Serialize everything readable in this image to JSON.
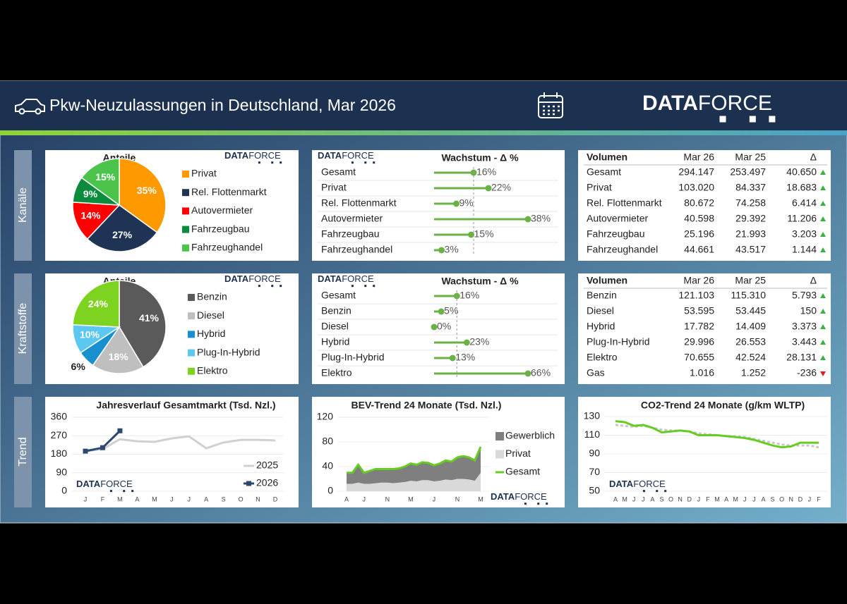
{
  "header": {
    "title": "Pkw-Neuzulassungen in Deutschland, Mar 2026",
    "logo": {
      "bold": "DATA",
      "light": "FORCE"
    }
  },
  "sections": [
    "Kanäle",
    "Kraftstoffe",
    "Trend"
  ],
  "chart_data": [
    {
      "type": "pie",
      "title": "Anteile",
      "categories": [
        "Privat",
        "Rel. Flottenmarkt",
        "Autovermieter",
        "Fahrzeugbau",
        "Fahrzeughandel"
      ],
      "values": [
        35,
        27,
        14,
        9,
        15
      ],
      "value_labels": [
        "35%",
        "27%",
        "14%",
        "9%",
        "15%"
      ],
      "colors": [
        "#ff9900",
        "#1f3354",
        "#ff0000",
        "#0b8c3c",
        "#4cc44c"
      ]
    },
    {
      "type": "bar",
      "orientation": "horizontal",
      "title": "Wachstum - Δ %",
      "categories": [
        "Gesamt",
        "Privat",
        "Rel. Flottenmarkt",
        "Autovermieter",
        "Fahrzeugbau",
        "Fahrzeughandel"
      ],
      "values": [
        16,
        22,
        9,
        38,
        15,
        3
      ],
      "value_labels": [
        "16%",
        "22%",
        "9%",
        "38%",
        "15%",
        "3%"
      ],
      "color": "#6ab245"
    },
    {
      "type": "pie",
      "title": "Anteile",
      "categories": [
        "Benzin",
        "Diesel",
        "Hybrid",
        "Plug-In-Hybrid",
        "Elektro"
      ],
      "values": [
        41,
        18,
        6,
        10,
        24
      ],
      "value_labels": [
        "41%",
        "18%",
        "6%",
        "10%",
        "24%"
      ],
      "colors": [
        "#5a5a5a",
        "#bfbfbf",
        "#1890d0",
        "#5cc8f2",
        "#7ed321"
      ]
    },
    {
      "type": "bar",
      "orientation": "horizontal",
      "title": "Wachstum - Δ %",
      "categories": [
        "Gesamt",
        "Benzin",
        "Diesel",
        "Hybrid",
        "Plug-In-Hybrid",
        "Elektro"
      ],
      "values": [
        16,
        5,
        0,
        23,
        13,
        66
      ],
      "value_labels": [
        "16%",
        "5%",
        "0%",
        "23%",
        "13%",
        "66%"
      ],
      "color": "#6ab245"
    },
    {
      "type": "line",
      "title": "Jahresverlauf Gesamtmarkt (Tsd. Nzl.)",
      "categories": [
        "J",
        "F",
        "M",
        "A",
        "M",
        "J",
        "J",
        "A",
        "S",
        "O",
        "N",
        "D"
      ],
      "series": [
        {
          "name": "2025",
          "color": "#d0d0d0",
          "values": [
            195,
            205,
            253,
            243,
            240,
            257,
            267,
            209,
            237,
            250,
            250,
            247
          ]
        },
        {
          "name": "2026",
          "color": "#2c4770",
          "values": [
            195,
            212,
            294,
            null,
            null,
            null,
            null,
            null,
            null,
            null,
            null,
            null
          ]
        }
      ],
      "ylim": [
        0,
        360
      ],
      "yticks": [
        0,
        90,
        180,
        270,
        360
      ]
    },
    {
      "type": "area",
      "stacked": true,
      "title": "BEV-Trend 24 Monate (Tsd. Nzl.)",
      "categories": [
        "A",
        null,
        null,
        "J",
        null,
        null,
        null,
        "N",
        null,
        null,
        null,
        "M",
        null,
        null,
        null,
        "J",
        null,
        null,
        null,
        "N",
        null,
        null,
        null,
        "M"
      ],
      "series": [
        {
          "name": "Gewerblich",
          "color": "#7f7f7f",
          "values": [
            18,
            18,
            29,
            18,
            21,
            23,
            22,
            22,
            23,
            23,
            25,
            28,
            27,
            29,
            28,
            26,
            28,
            31,
            30,
            35,
            37,
            36,
            33,
            42
          ]
        },
        {
          "name": "Privat",
          "color": "#d9d9d9",
          "values": [
            12,
            12,
            14,
            12,
            12,
            13,
            14,
            14,
            13,
            14,
            15,
            17,
            16,
            18,
            18,
            16,
            17,
            19,
            18,
            20,
            20,
            19,
            17,
            30
          ]
        },
        {
          "name": "Gesamt",
          "color": "#66cc22",
          "type": "line",
          "values": [
            30,
            30,
            43,
            30,
            33,
            36,
            36,
            36,
            36,
            37,
            40,
            45,
            43,
            47,
            46,
            42,
            45,
            50,
            48,
            55,
            57,
            55,
            50,
            72
          ]
        }
      ],
      "ylim": [
        0,
        120
      ],
      "yticks": [
        0,
        40,
        80,
        120
      ]
    },
    {
      "type": "line",
      "title": "CO2-Trend 24 Monate (g/km WLTP)",
      "categories": [
        "A",
        "M",
        "J",
        "J",
        "A",
        "S",
        "O",
        "N",
        "D",
        "J",
        "F",
        "M",
        "A",
        "M",
        "J",
        "J",
        "A",
        "S",
        "O",
        "N",
        "D",
        "J",
        "F"
      ],
      "series": [
        {
          "color": "#c8c8c8",
          "dashed": true,
          "values": [
            121,
            120,
            119,
            120,
            118,
            116,
            115,
            115,
            114,
            112,
            111,
            110,
            109,
            109,
            108,
            106,
            104,
            102,
            100,
            99,
            99,
            99,
            97
          ]
        },
        {
          "color": "#66cc22",
          "values": [
            125,
            124,
            120,
            121,
            118,
            113,
            114,
            115,
            114,
            110,
            110,
            110,
            109,
            108,
            107,
            105,
            102,
            99,
            97,
            98,
            102,
            102,
            102
          ]
        }
      ],
      "ylim": [
        50,
        130
      ],
      "yticks": [
        50,
        70,
        90,
        110,
        130
      ]
    }
  ],
  "tables": [
    {
      "columns": [
        "Volumen",
        "Mar 26",
        "Mar 25",
        "Δ"
      ],
      "rows": [
        [
          "Gesamt",
          "294.147",
          "253.497",
          "40.650"
        ],
        [
          "Privat",
          "103.020",
          "84.337",
          "18.683"
        ],
        [
          "Rel. Flottenmarkt",
          "80.672",
          "74.258",
          "6.414"
        ],
        [
          "Autovermieter",
          "40.598",
          "29.392",
          "11.206"
        ],
        [
          "Fahrzeugbau",
          "25.196",
          "21.993",
          "3.203"
        ],
        [
          "Fahrzeughandel",
          "44.661",
          "43.517",
          "1.144"
        ]
      ]
    },
    {
      "columns": [
        "Volumen",
        "Mar 26",
        "Mar 25",
        "Δ"
      ],
      "rows": [
        [
          "Benzin",
          "121.103",
          "115.310",
          "5.793"
        ],
        [
          "Diesel",
          "53.595",
          "53.445",
          "150"
        ],
        [
          "Hybrid",
          "17.782",
          "14.409",
          "3.373"
        ],
        [
          "Plug-In-Hybrid",
          "29.996",
          "26.553",
          "3.443"
        ],
        [
          "Elektro",
          "70.655",
          "42.524",
          "28.131"
        ],
        [
          "Gas",
          "1.016",
          "1.252",
          "-236"
        ]
      ]
    }
  ]
}
